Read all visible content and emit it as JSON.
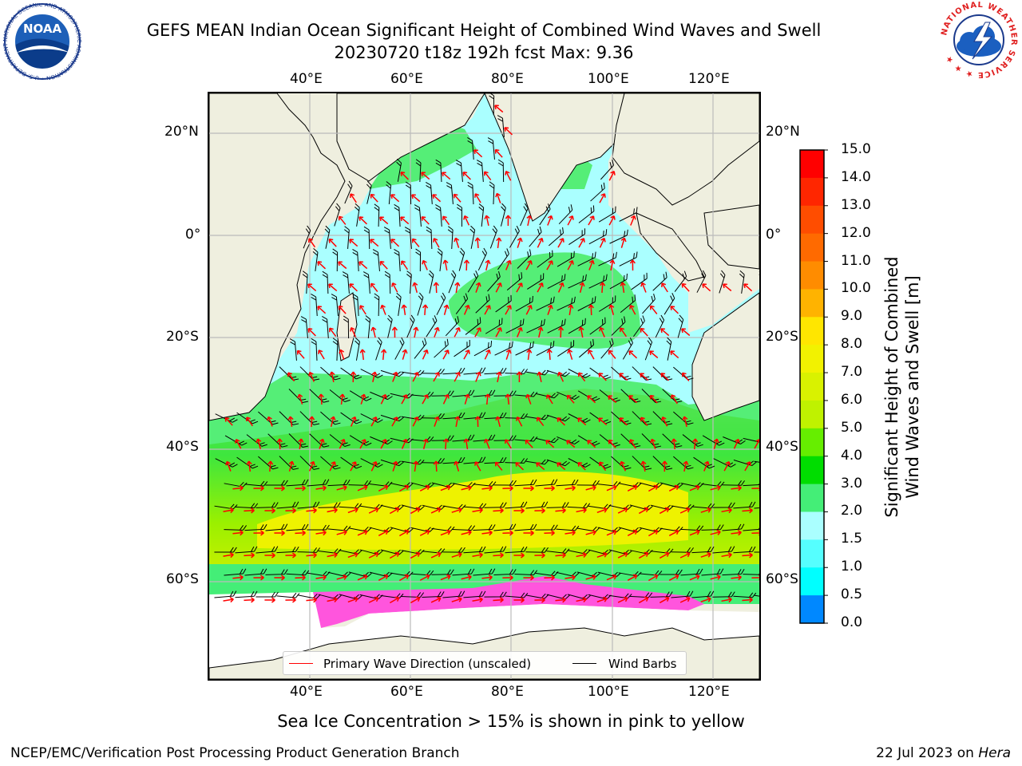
{
  "title": {
    "line1": "GEFS MEAN Indian Ocean Significant Height of Combined Wind Waves and Swell",
    "line2": "20230720 t18z 192h fcst   Max: 9.36"
  },
  "axes": {
    "lon_labels": [
      "40°E",
      "60°E",
      "80°E",
      "100°E",
      "120°E"
    ],
    "lat_labels": [
      "20°N",
      "0°",
      "20°S",
      "40°S",
      "60°S"
    ]
  },
  "colorbar": {
    "title_line1": "Significant Height of Combined",
    "title_line2": "Wind Waves and Swell [m]",
    "ticks": [
      "15.0",
      "14.0",
      "13.0",
      "12.0",
      "11.0",
      "10.0",
      "9.0",
      "8.0",
      "7.0",
      "6.0",
      "5.0",
      "4.0",
      "3.0",
      "2.0",
      "1.5",
      "1.0",
      "0.5",
      "0.0"
    ],
    "colors": [
      "#ff0000",
      "#ff2600",
      "#ff4d00",
      "#ff6a00",
      "#ff8c00",
      "#ffb300",
      "#ffe600",
      "#f2f200",
      "#d9f200",
      "#bff200",
      "#66ee00",
      "#00dd00",
      "#44ee77",
      "#aaffff",
      "#55ffff",
      "#00ffff",
      "#0088ff",
      "#0000ff"
    ]
  },
  "legend": {
    "primary_wave": "Primary Wave Direction (unscaled)",
    "wind_barbs": "Wind Barbs",
    "primary_wave_color": "#ff0000",
    "wind_barbs_color": "#000000"
  },
  "subtitle": "Sea Ice Concentration > 15% is shown in pink to yellow",
  "footer": {
    "left": "NCEP/EMC/Verification Post Processing Product Generation Branch",
    "date": "22 Jul 2023 on ",
    "host": "Hera"
  },
  "logos": {
    "noaa_text": "NOAA",
    "noaa_ring": "NATIONAL OCEANIC AND ATMOSPHERIC ADMINISTRATION • U.S. DEPARTMENT OF COMMERCE •",
    "nws_ring": "NATIONAL WEATHER SERVICE ★ ★ ★"
  },
  "colors": {
    "land": "#efefdf",
    "frame": "#000000",
    "grid": "#bbbbbb"
  }
}
